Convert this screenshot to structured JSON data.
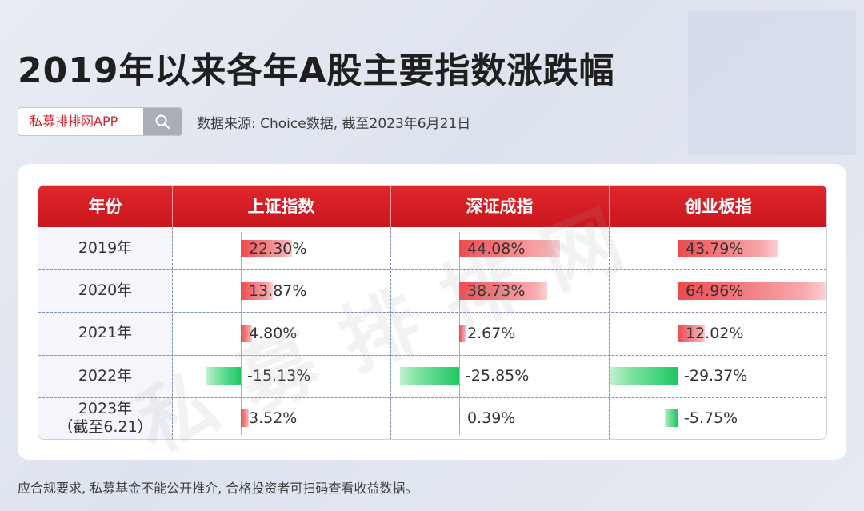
{
  "title": "2019年以来各年A股主要指数涨跌幅",
  "search": {
    "brand": "私募排排网APP"
  },
  "source": "数据来源: Choice数据, 截至2023年6月21日",
  "watermark": "私募排排网",
  "footnote": "应合规要求, 私募基金不能公开推介, 合格投资者可扫码查看收益数据。",
  "colors": {
    "header": "#d9232a",
    "positive": "#ee4a4f",
    "negative": "#1fc764"
  },
  "chart_data": {
    "type": "table",
    "columns": [
      "年份",
      "上证指数",
      "深证成指",
      "创业板指"
    ],
    "rows": [
      {
        "year": "2019年",
        "values": [
          22.3,
          44.08,
          43.79
        ],
        "labels": [
          "22.30%",
          "44.08%",
          "43.79%"
        ]
      },
      {
        "year": "2020年",
        "values": [
          13.87,
          38.73,
          64.96
        ],
        "labels": [
          "13.87%",
          "38.73%",
          "64.96%"
        ]
      },
      {
        "year": "2021年",
        "values": [
          4.8,
          2.67,
          12.02
        ],
        "labels": [
          "4.80%",
          "2.67%",
          "12.02%"
        ]
      },
      {
        "year": "2022年",
        "values": [
          -15.13,
          -25.85,
          -29.37
        ],
        "labels": [
          "-15.13%",
          "-25.85%",
          "-29.37%"
        ]
      },
      {
        "year": "2023年",
        "year_note": "（截至6.21）",
        "values": [
          3.52,
          0.39,
          -5.75
        ],
        "labels": [
          "3.52%",
          "0.39%",
          "-5.75%"
        ]
      }
    ]
  }
}
